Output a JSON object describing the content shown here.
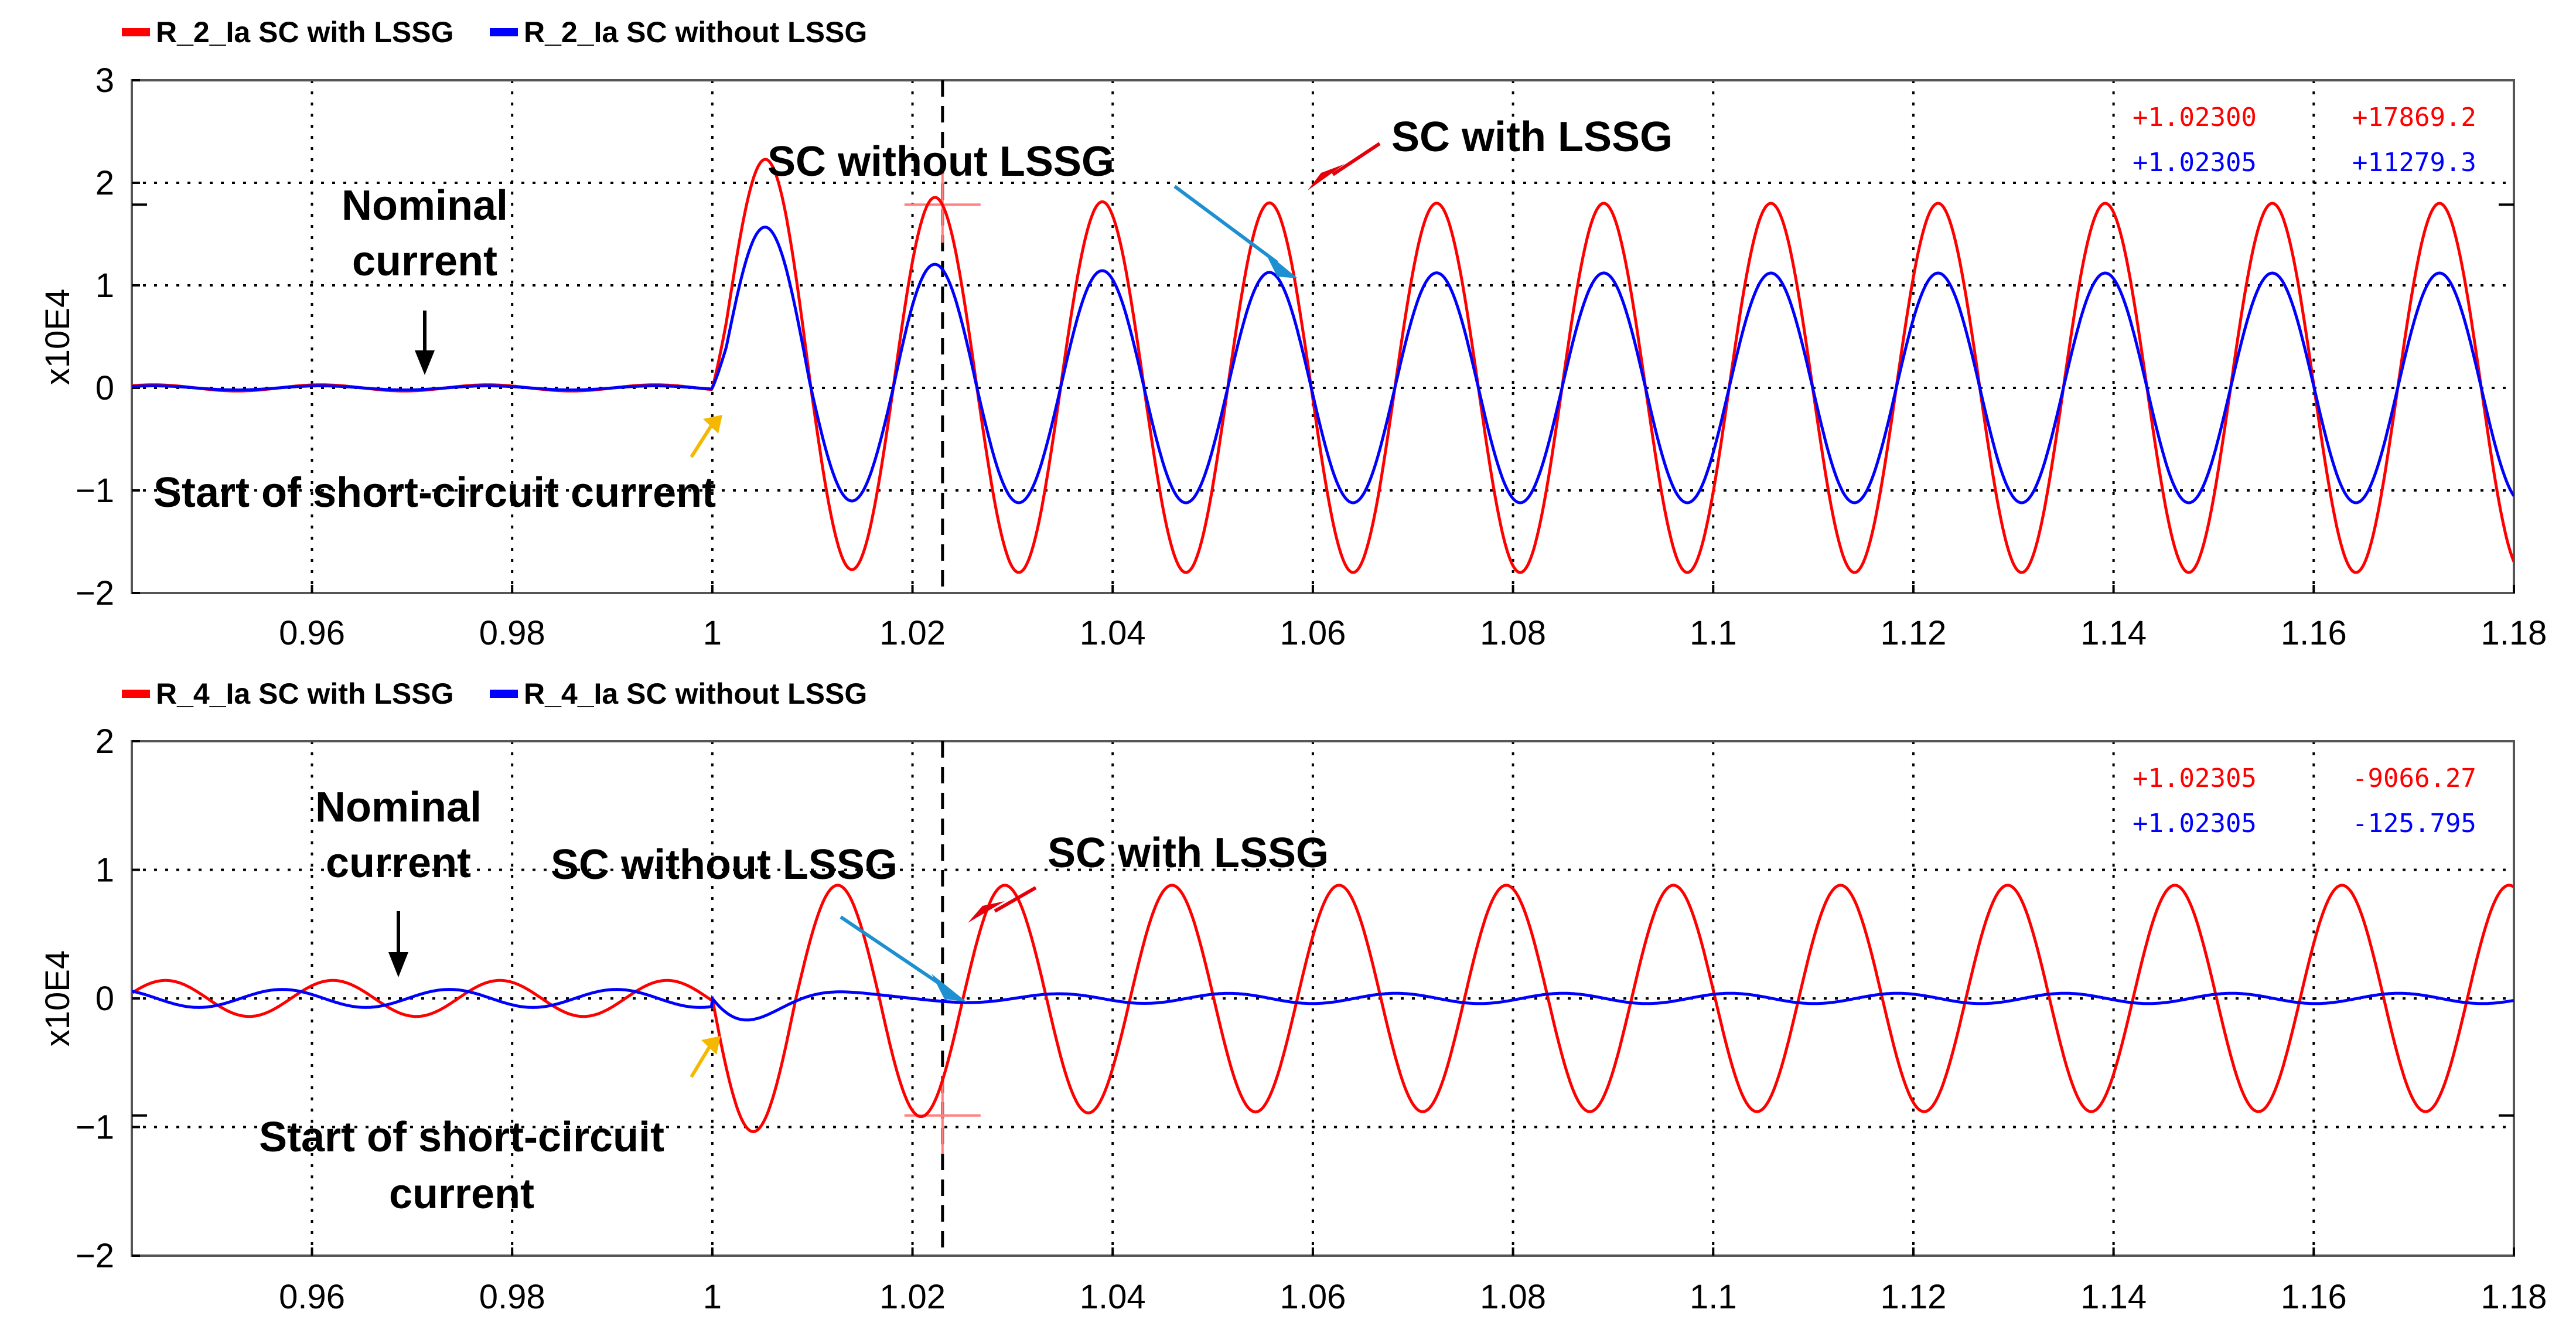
{
  "colors": {
    "with": "#ff0000",
    "without": "#0000ff",
    "arrow_red": "#e3000b",
    "arrow_blue": "#1e8fd0",
    "arrow_yellow": "#f5b800",
    "arrow_black": "#000000"
  },
  "chart_data": [
    {
      "type": "line",
      "legend": [
        "R_2_Ia SC with LSSG",
        "R_2_Ia SC without LSSG"
      ],
      "ylabel": "x10E4",
      "xlim": [
        0.942,
        1.18
      ],
      "ylim": [
        -2,
        3
      ],
      "xticks": [
        "0.96",
        "0.98",
        "1",
        "1.02",
        "1.04",
        "1.06",
        "1.08",
        "1.1",
        "1.12",
        "1.14",
        "1.16",
        "1.18"
      ],
      "yticks": [
        "3",
        "2",
        "1",
        "0",
        "−1",
        "−2"
      ],
      "series": [
        {
          "name": "R_2_Ia SC with LSSG",
          "color": "#ff0000",
          "prefault_amplitude": 0.03,
          "first_peak": 2.1,
          "steady_amplitude": 1.8,
          "period": 0.0167,
          "fault_start": 1.0
        },
        {
          "name": "R_2_Ia SC without LSSG",
          "color": "#0000ff",
          "prefault_amplitude": 0.02,
          "first_peak": 1.58,
          "steady_amplitude": 1.12,
          "period": 0.0167,
          "fault_start": 1.0
        }
      ],
      "cursor": {
        "x": 1.023,
        "y": 1.787
      },
      "readouts": [
        {
          "time": "+1.02300",
          "value": "+17869.2",
          "color": "#ff0000"
        },
        {
          "time": "+1.02305",
          "value": "+11279.3",
          "color": "#0000ff"
        }
      ],
      "annotations": {
        "nominal_line1": "Nominal",
        "nominal_line2": "current",
        "start": "Start of short-circuit current",
        "without": "SC without LSSG",
        "with": "SC with LSSG"
      }
    },
    {
      "type": "line",
      "legend": [
        "R_4_Ia SC with LSSG",
        "R_4_Ia SC without LSSG"
      ],
      "ylabel": "x10E4",
      "xlim": [
        0.942,
        1.18
      ],
      "ylim": [
        -2,
        2
      ],
      "xticks": [
        "0.96",
        "0.98",
        "1",
        "1.02",
        "1.04",
        "1.06",
        "1.08",
        "1.1",
        "1.12",
        "1.14",
        "1.16",
        "1.18"
      ],
      "yticks": [
        "2",
        "1",
        "0",
        "−1",
        "−2"
      ],
      "series": [
        {
          "name": "R_4_Ia SC with LSSG",
          "color": "#ff0000",
          "prefault_amplitude": 0.14,
          "first_trough": -1.1,
          "steady_amplitude": 0.88,
          "period": 0.0167,
          "fault_start": 1.0
        },
        {
          "name": "R_4_Ia SC without LSSG",
          "color": "#0000ff",
          "prefault_amplitude": 0.07,
          "first_trough": -0.27,
          "steady_amplitude": 0.04,
          "period": 0.0167,
          "fault_start": 1.0
        }
      ],
      "cursor": {
        "x": 1.023,
        "y": -0.91
      },
      "readouts": [
        {
          "time": "+1.02305",
          "value": "-9066.27",
          "color": "#ff0000"
        },
        {
          "time": "+1.02305",
          "value": "-125.795",
          "color": "#0000ff"
        }
      ],
      "annotations": {
        "nominal_line1": "Nominal",
        "nominal_line2": "current",
        "start_line1": "Start of short-circuit",
        "start_line2": "current",
        "without": "SC without LSSG",
        "with": "SC with LSSG"
      }
    }
  ]
}
